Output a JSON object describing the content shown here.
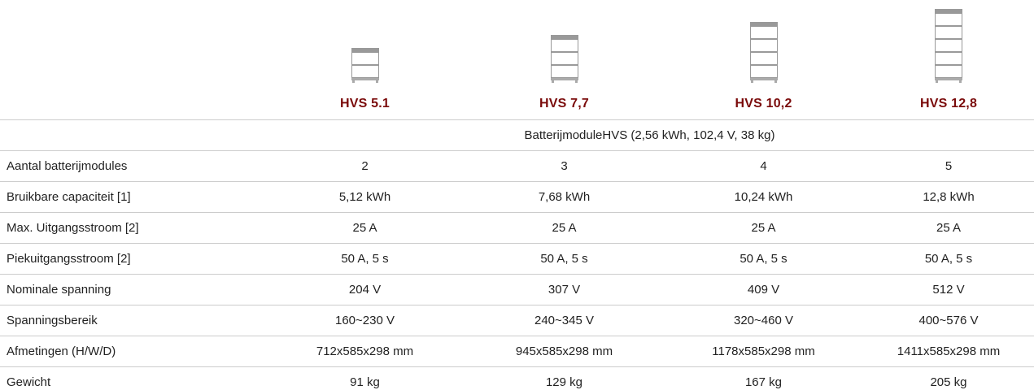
{
  "header": {
    "models": [
      "HVS 5.1",
      "HVS 7,7",
      "HVS 10,2",
      "HVS 12,8"
    ],
    "module": "BatterijmoduleHVS (2,56 kWh, 102,4 V, 38 kg)"
  },
  "table": {
    "rows": [
      [
        "Aantal batterijmodules",
        "2",
        "3",
        "4",
        "5"
      ],
      [
        "Bruikbare capaciteit [1]",
        "5,12 kWh",
        "7,68 kWh",
        "10,24 kWh",
        "12,8 kWh"
      ],
      [
        "Max. Uitgangsstroom [2]",
        "25 A",
        "25 A",
        "25 A",
        "25 A"
      ],
      [
        "Piekuitgangsstroom [2]",
        "50 A, 5 s",
        "50 A, 5 s",
        "50 A, 5 s",
        "50 A, 5 s"
      ],
      [
        "Nominale spanning",
        "204 V",
        "307 V",
        "409 V",
        "512 V"
      ],
      [
        "Spanningsbereik",
        "160~230 V",
        "240~345 V",
        "320~460 V",
        "400~576 V"
      ],
      [
        "Afmetingen (H/W/D)",
        "712x585x298 mm",
        "945x585x298 mm",
        "1178x585x298 mm",
        "1411x585x298 mm"
      ],
      [
        "Gewicht",
        "91 kg",
        "129 kg",
        "167 kg",
        "205 kg"
      ]
    ]
  }
}
